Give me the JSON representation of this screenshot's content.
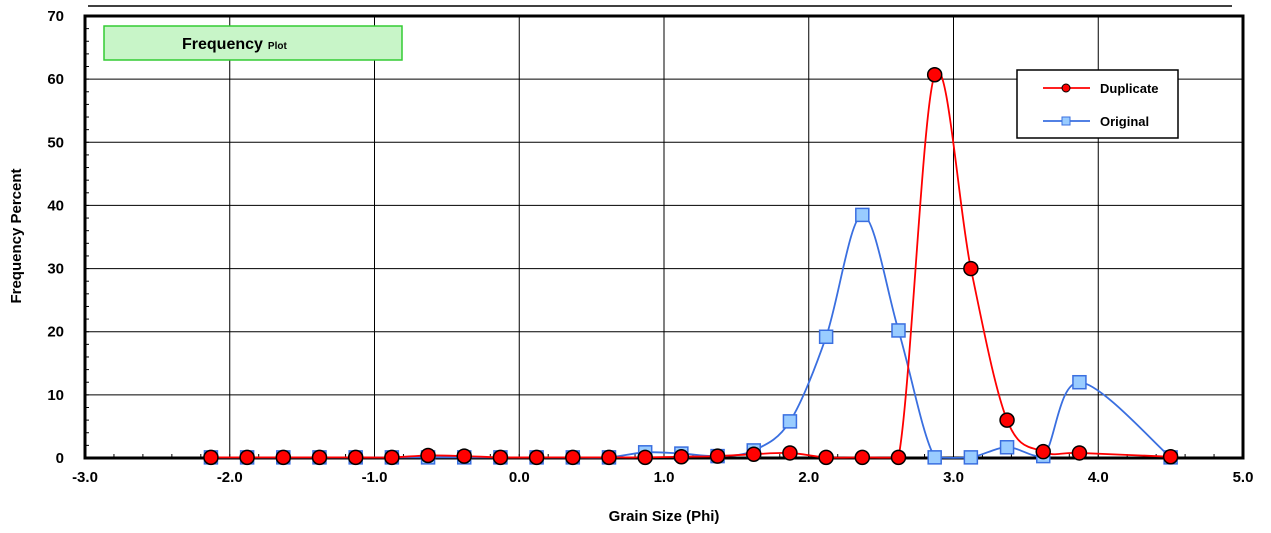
{
  "chart_data": {
    "type": "line",
    "title": "Frequency",
    "subtitle": "Plot",
    "xlabel": "Grain Size (Phi)",
    "ylabel": "Frequency Percent",
    "xlim": [
      -3.0,
      5.0
    ],
    "ylim": [
      0,
      70
    ],
    "xticks": [
      -3.0,
      -2.0,
      -1.0,
      0.0,
      1.0,
      2.0,
      3.0,
      4.0,
      5.0
    ],
    "xtick_labels": [
      "-3.0",
      "-2.0",
      "-1.0",
      "0.0",
      "1.0",
      "2.0",
      "3.0",
      "4.0",
      "5.0"
    ],
    "yticks": [
      0,
      10,
      20,
      30,
      40,
      50,
      60,
      70
    ],
    "ytick_labels": [
      "0",
      "10",
      "20",
      "30",
      "40",
      "50",
      "60",
      "70"
    ],
    "grid": true,
    "legend_position": "top-right",
    "x": [
      -2.13,
      -1.88,
      -1.63,
      -1.38,
      -1.13,
      -0.88,
      -0.63,
      -0.38,
      -0.13,
      0.12,
      0.37,
      0.62,
      0.87,
      1.12,
      1.37,
      1.62,
      1.87,
      2.12,
      2.37,
      2.62,
      2.87,
      3.12,
      3.37,
      3.62,
      3.87,
      4.5
    ],
    "series": [
      {
        "name": "Duplicate",
        "color": "#ff0000",
        "marker": "circle",
        "values": [
          0.1,
          0.1,
          0.1,
          0.1,
          0.1,
          0.1,
          0.4,
          0.3,
          0.1,
          0.1,
          0.1,
          0.1,
          0.1,
          0.2,
          0.3,
          0.6,
          0.8,
          0.1,
          0.1,
          0.1,
          60.7,
          30.0,
          6.0,
          1.0,
          0.8,
          0.2
        ]
      },
      {
        "name": "Original",
        "color": "#3a6fe0",
        "marker": "square",
        "values": [
          0.1,
          0.1,
          0.1,
          0.1,
          0.1,
          0.1,
          0.1,
          0.1,
          0.1,
          0.1,
          0.1,
          0.1,
          0.9,
          0.7,
          0.3,
          1.2,
          5.8,
          19.2,
          38.5,
          20.2,
          0.1,
          0.1,
          1.7,
          0.3,
          12.0,
          0.1
        ]
      }
    ]
  }
}
